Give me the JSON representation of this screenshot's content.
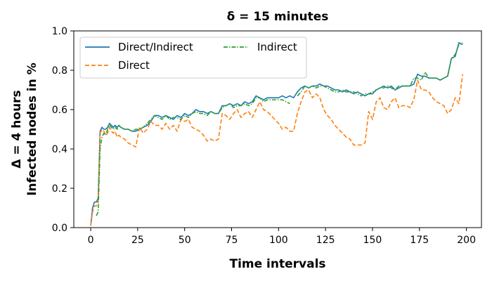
{
  "chart_data": {
    "type": "line",
    "title": "δ = 15 minutes",
    "xlabel": "Time intervals",
    "ylabel": [
      "Δ = 4 hours",
      "Infected nodes in %"
    ],
    "xlim": [
      -9,
      208
    ],
    "ylim": [
      0,
      1.0
    ],
    "xticks": [
      0,
      25,
      50,
      75,
      100,
      125,
      150,
      175,
      200
    ],
    "yticks": [
      0.0,
      0.2,
      0.4,
      0.6,
      0.8,
      1.0
    ],
    "xtick_labels": [
      "0",
      "25",
      "50",
      "75",
      "100",
      "125",
      "150",
      "175",
      "200"
    ],
    "ytick_labels": [
      "0.0",
      "0.2",
      "0.4",
      "0.6",
      "0.8",
      "1.0"
    ],
    "legend": {
      "placement": "top-left",
      "columns": 2
    },
    "series": [
      {
        "name": "Direct/Indirect",
        "color": "#1f77b4",
        "style": "solid",
        "x": [
          0,
          1,
          2,
          3,
          4,
          5,
          6,
          7,
          8,
          9,
          10,
          11,
          12,
          13,
          14,
          15,
          16,
          18,
          20,
          22,
          24,
          26,
          28,
          30,
          32,
          34,
          36,
          38,
          40,
          42,
          44,
          46,
          48,
          50,
          52,
          54,
          56,
          58,
          60,
          62,
          64,
          66,
          68,
          70,
          72,
          74,
          76,
          78,
          80,
          82,
          84,
          86,
          88,
          90,
          92,
          94,
          96,
          98,
          100,
          102,
          104,
          106,
          108,
          110,
          112,
          114,
          116,
          118,
          120,
          122,
          124,
          126,
          128,
          130,
          132,
          134,
          136,
          138,
          140,
          142,
          144,
          146,
          148,
          150,
          152,
          154,
          156,
          158,
          160,
          162,
          164,
          166,
          168,
          170,
          172,
          174,
          176,
          178,
          180,
          182,
          184,
          186,
          188,
          190,
          192,
          194,
          196,
          198
        ],
        "y": [
          0.01,
          0.1,
          0.13,
          0.13,
          0.15,
          0.49,
          0.51,
          0.5,
          0.5,
          0.51,
          0.53,
          0.52,
          0.51,
          0.52,
          0.51,
          0.52,
          0.51,
          0.5,
          0.5,
          0.49,
          0.49,
          0.5,
          0.51,
          0.52,
          0.54,
          0.57,
          0.57,
          0.56,
          0.57,
          0.56,
          0.55,
          0.57,
          0.56,
          0.58,
          0.57,
          0.58,
          0.6,
          0.59,
          0.59,
          0.58,
          0.59,
          0.58,
          0.58,
          0.62,
          0.62,
          0.63,
          0.62,
          0.63,
          0.62,
          0.64,
          0.63,
          0.64,
          0.67,
          0.66,
          0.65,
          0.66,
          0.66,
          0.66,
          0.66,
          0.67,
          0.66,
          0.67,
          0.66,
          0.69,
          0.71,
          0.72,
          0.71,
          0.72,
          0.72,
          0.73,
          0.72,
          0.72,
          0.71,
          0.7,
          0.7,
          0.69,
          0.7,
          0.69,
          0.68,
          0.69,
          0.68,
          0.67,
          0.68,
          0.68,
          0.7,
          0.71,
          0.72,
          0.71,
          0.72,
          0.7,
          0.71,
          0.72,
          0.72,
          0.72,
          0.73,
          0.78,
          0.77,
          0.77,
          0.76,
          0.76,
          0.76,
          0.75,
          0.76,
          0.77,
          0.86,
          0.87,
          0.94,
          0.93
        ]
      },
      {
        "name": "Direct",
        "color": "#ff7f0e",
        "style": "dashed",
        "x": [
          0,
          1,
          2,
          3,
          4,
          5,
          6,
          7,
          8,
          9,
          10,
          11,
          12,
          13,
          14,
          15,
          16,
          18,
          20,
          22,
          24,
          26,
          28,
          30,
          32,
          34,
          36,
          38,
          40,
          42,
          44,
          46,
          48,
          50,
          52,
          54,
          56,
          58,
          60,
          62,
          64,
          66,
          68,
          70,
          72,
          74,
          76,
          78,
          80,
          82,
          84,
          86,
          88,
          90,
          92,
          94,
          96,
          98,
          100,
          102,
          104,
          106,
          108,
          110,
          112,
          114,
          116,
          118,
          120,
          122,
          124,
          126,
          128,
          130,
          132,
          134,
          136,
          138,
          140,
          142,
          144,
          146,
          148,
          150,
          152,
          154,
          156,
          158,
          160,
          162,
          164,
          166,
          168,
          170,
          172,
          174,
          176,
          178,
          180,
          182,
          184,
          186,
          188,
          190,
          192,
          194,
          196,
          198
        ],
        "y": [
          0.01,
          0.08,
          0.11,
          0.11,
          0.14,
          0.48,
          0.5,
          0.49,
          0.47,
          0.48,
          0.51,
          0.49,
          0.48,
          0.49,
          0.46,
          0.47,
          0.46,
          0.45,
          0.43,
          0.42,
          0.41,
          0.51,
          0.48,
          0.5,
          0.54,
          0.52,
          0.52,
          0.5,
          0.53,
          0.5,
          0.52,
          0.49,
          0.55,
          0.54,
          0.55,
          0.51,
          0.5,
          0.49,
          0.47,
          0.44,
          0.45,
          0.44,
          0.45,
          0.58,
          0.57,
          0.55,
          0.58,
          0.6,
          0.56,
          0.58,
          0.59,
          0.56,
          0.6,
          0.64,
          0.6,
          0.59,
          0.57,
          0.55,
          0.53,
          0.5,
          0.51,
          0.49,
          0.49,
          0.58,
          0.64,
          0.69,
          0.7,
          0.66,
          0.68,
          0.66,
          0.6,
          0.57,
          0.55,
          0.52,
          0.5,
          0.48,
          0.46,
          0.45,
          0.42,
          0.42,
          0.42,
          0.43,
          0.59,
          0.55,
          0.64,
          0.66,
          0.61,
          0.6,
          0.64,
          0.66,
          0.61,
          0.62,
          0.62,
          0.61,
          0.65,
          0.75,
          0.7,
          0.7,
          0.69,
          0.66,
          0.64,
          0.63,
          0.62,
          0.58,
          0.6,
          0.66,
          0.63,
          0.78
        ]
      },
      {
        "name": "Indirect",
        "color": "#2ca02c",
        "style": "dashdot",
        "x": [
          3,
          4,
          5,
          6,
          7,
          8,
          9,
          10,
          11,
          12,
          13,
          14,
          15,
          16,
          18,
          20,
          22,
          24,
          26,
          28,
          30,
          32,
          34,
          36,
          38,
          40,
          42,
          44,
          46,
          48,
          50,
          52,
          54,
          56,
          58,
          60,
          62,
          64,
          66,
          68,
          70,
          72,
          74,
          76,
          78,
          80,
          82,
          84,
          86,
          88,
          90,
          92,
          94,
          96,
          98,
          100,
          102,
          104,
          106
        ],
        "y": [
          0.06,
          0.08,
          0.4,
          0.46,
          0.48,
          0.47,
          0.5,
          0.52,
          0.51,
          0.5,
          0.51,
          0.5,
          0.52,
          0.51,
          0.5,
          0.5,
          0.49,
          0.5,
          0.5,
          0.51,
          0.53,
          0.55,
          0.57,
          0.56,
          0.55,
          0.57,
          0.55,
          0.56,
          0.56,
          0.55,
          0.57,
          0.56,
          0.58,
          0.59,
          0.58,
          0.58,
          0.57,
          0.59,
          0.58,
          0.58,
          0.61,
          0.62,
          0.63,
          0.61,
          0.62,
          0.62,
          0.63,
          0.62,
          0.63,
          0.66,
          0.66,
          0.64,
          0.65,
          0.65,
          0.65,
          0.65,
          0.65,
          0.64,
          0.63
        ]
      },
      {
        "name": "Indirect",
        "color": "#2ca02c",
        "style": "dashdot",
        "hidden_from_legend": true,
        "x": [
          110,
          112,
          114,
          116,
          118,
          120,
          122,
          124,
          126,
          128,
          130,
          132,
          134,
          136,
          138,
          140,
          142,
          144,
          146,
          148,
          150,
          152,
          154,
          156,
          158,
          160,
          162,
          164,
          166,
          168,
          170,
          172,
          174,
          176,
          178,
          180,
          182,
          184,
          186,
          188,
          190,
          192,
          194,
          196,
          198
        ],
        "y": [
          0.67,
          0.69,
          0.72,
          0.71,
          0.72,
          0.71,
          0.72,
          0.72,
          0.71,
          0.7,
          0.69,
          0.69,
          0.7,
          0.69,
          0.69,
          0.69,
          0.68,
          0.67,
          0.68,
          0.68,
          0.69,
          0.7,
          0.71,
          0.71,
          0.72,
          0.71,
          0.7,
          0.72,
          0.72,
          0.72,
          0.72,
          0.76,
          0.76,
          0.75,
          0.79,
          0.76,
          0.76,
          0.76,
          0.75,
          0.76,
          0.77,
          0.86,
          0.88,
          0.93,
          0.94
        ]
      }
    ]
  }
}
